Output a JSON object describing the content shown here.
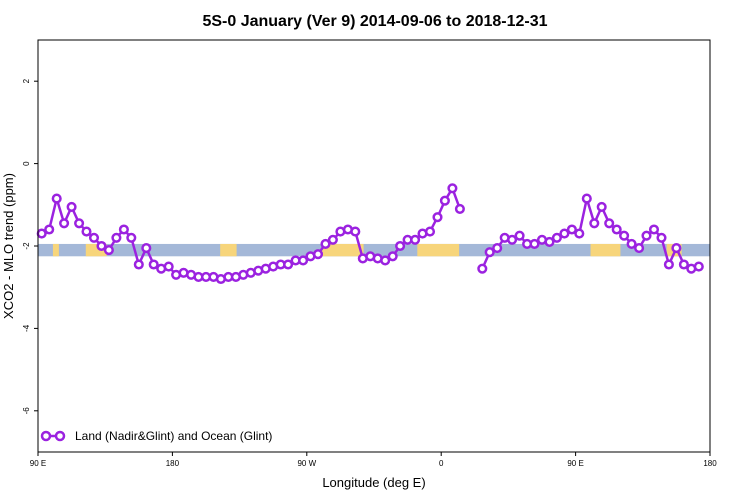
{
  "chart_data": {
    "type": "line",
    "title": "5S-0 January (Ver 9)   2014-09-06 to 2018-12-31",
    "xlabel": "Longitude (deg E)",
    "ylabel": "XCO2 - MLO trend (ppm)",
    "xlim": [
      90,
      540
    ],
    "ylim": [
      -7,
      3
    ],
    "x_ticks": [
      {
        "value": 90,
        "label": "90 E"
      },
      {
        "value": 180,
        "label": "180"
      },
      {
        "value": 270,
        "label": "90 W"
      },
      {
        "value": 360,
        "label": "0"
      },
      {
        "value": 450,
        "label": "90 E"
      },
      {
        "value": 540,
        "label": "180"
      }
    ],
    "y_ticks": [
      {
        "value": 2,
        "label": "2"
      },
      {
        "value": 0,
        "label": "0"
      },
      {
        "value": -2,
        "label": "-2"
      },
      {
        "value": -4,
        "label": "-4"
      },
      {
        "value": -6,
        "label": "-6"
      }
    ],
    "grid": false,
    "legend_position": "bottom-left",
    "band": {
      "ymin": -2.25,
      "ymax": -1.95,
      "ocean_color": "#a4b8d8",
      "land_color": "#f7d57b"
    },
    "land_spans": [
      [
        100,
        104
      ],
      [
        122,
        136
      ],
      [
        212,
        223
      ],
      [
        280,
        308
      ],
      [
        344,
        372
      ],
      [
        460,
        480
      ],
      [
        511,
        521
      ]
    ],
    "series": [
      {
        "name": "Land (Nadir&Glint) and Ocean (Glint)",
        "color": "#9b22e0",
        "segments": [
          [
            [
              92.5,
              -1.7
            ],
            [
              97.5,
              -1.6
            ],
            [
              102.5,
              -0.85
            ],
            [
              107.5,
              -1.45
            ],
            [
              112.5,
              -1.05
            ],
            [
              117.5,
              -1.45
            ],
            [
              122.5,
              -1.65
            ],
            [
              127.5,
              -1.8
            ],
            [
              132.5,
              -2.0
            ],
            [
              137.5,
              -2.1
            ],
            [
              142.5,
              -1.8
            ],
            [
              147.5,
              -1.6
            ],
            [
              152.5,
              -1.8
            ],
            [
              157.5,
              -2.45
            ],
            [
              162.5,
              -2.05
            ],
            [
              167.5,
              -2.45
            ],
            [
              172.5,
              -2.55
            ],
            [
              177.5,
              -2.5
            ],
            [
              182.5,
              -2.7
            ],
            [
              187.5,
              -2.65
            ],
            [
              192.5,
              -2.7
            ],
            [
              197.5,
              -2.75
            ],
            [
              202.5,
              -2.75
            ],
            [
              207.5,
              -2.75
            ],
            [
              212.5,
              -2.8
            ],
            [
              217.5,
              -2.75
            ],
            [
              222.5,
              -2.75
            ],
            [
              227.5,
              -2.7
            ],
            [
              232.5,
              -2.65
            ],
            [
              237.5,
              -2.6
            ],
            [
              242.5,
              -2.55
            ],
            [
              247.5,
              -2.5
            ],
            [
              252.5,
              -2.45
            ],
            [
              257.5,
              -2.45
            ],
            [
              262.5,
              -2.35
            ],
            [
              267.5,
              -2.35
            ],
            [
              272.5,
              -2.25
            ],
            [
              277.5,
              -2.2
            ],
            [
              282.5,
              -1.95
            ],
            [
              287.5,
              -1.85
            ],
            [
              292.5,
              -1.65
            ],
            [
              297.5,
              -1.6
            ],
            [
              302.5,
              -1.65
            ],
            [
              307.5,
              -2.3
            ],
            [
              312.5,
              -2.25
            ],
            [
              317.5,
              -2.3
            ],
            [
              322.5,
              -2.35
            ],
            [
              327.5,
              -2.25
            ],
            [
              332.5,
              -2.0
            ],
            [
              337.5,
              -1.85
            ],
            [
              342.5,
              -1.85
            ],
            [
              347.5,
              -1.7
            ],
            [
              352.5,
              -1.65
            ],
            [
              357.5,
              -1.3
            ],
            [
              362.5,
              -0.9
            ],
            [
              367.5,
              -0.6
            ],
            [
              372.5,
              -1.1
            ]
          ],
          [
            [
              387.5,
              -2.55
            ],
            [
              392.5,
              -2.15
            ],
            [
              397.5,
              -2.05
            ],
            [
              402.5,
              -1.8
            ],
            [
              407.5,
              -1.85
            ],
            [
              412.5,
              -1.75
            ],
            [
              417.5,
              -1.95
            ],
            [
              422.5,
              -1.95
            ],
            [
              427.5,
              -1.85
            ],
            [
              432.5,
              -1.9
            ],
            [
              437.5,
              -1.8
            ],
            [
              442.5,
              -1.7
            ],
            [
              447.5,
              -1.6
            ],
            [
              452.5,
              -1.7
            ],
            [
              457.5,
              -0.85
            ],
            [
              462.5,
              -1.45
            ],
            [
              467.5,
              -1.05
            ],
            [
              472.5,
              -1.45
            ],
            [
              477.5,
              -1.6
            ],
            [
              482.5,
              -1.75
            ],
            [
              487.5,
              -1.95
            ],
            [
              492.5,
              -2.05
            ],
            [
              497.5,
              -1.75
            ],
            [
              502.5,
              -1.6
            ],
            [
              507.5,
              -1.8
            ],
            [
              512.5,
              -2.45
            ],
            [
              517.5,
              -2.05
            ],
            [
              522.5,
              -2.45
            ],
            [
              527.5,
              -2.55
            ],
            [
              532.5,
              -2.5
            ]
          ]
        ]
      }
    ]
  }
}
